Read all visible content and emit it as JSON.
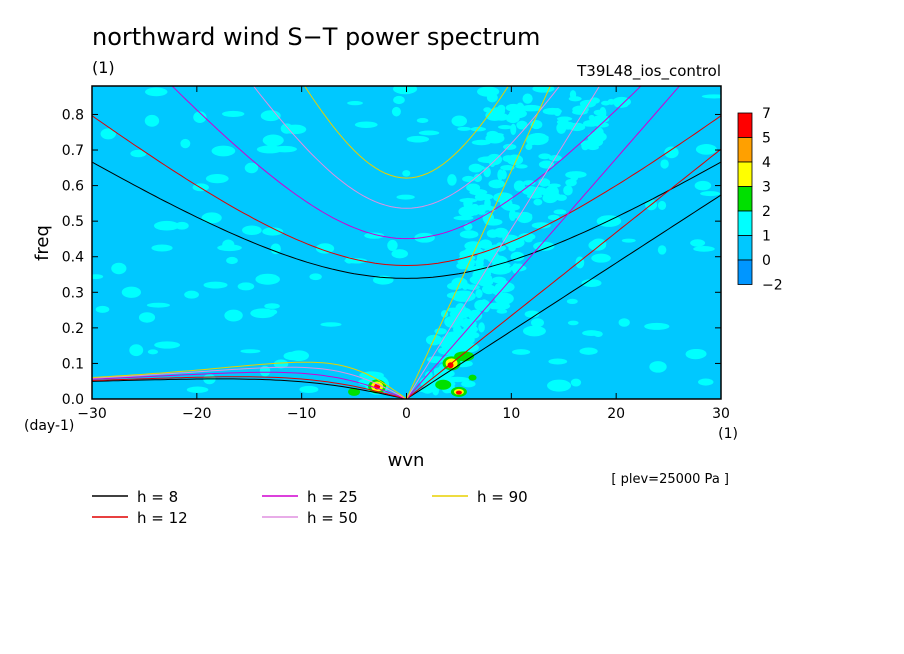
{
  "chart_data": {
    "type": "heatmap",
    "title": "northward wind S−T power spectrum",
    "units_label": "(1)",
    "run_label": "T39L48_ios_control",
    "xlabel": "wvn",
    "xunit": "(1)",
    "ylabel": "freq",
    "yunit": "(day-1)",
    "xlim": [
      -30,
      30
    ],
    "ylim": [
      0,
      0.88
    ],
    "xticks": [
      -30,
      -20,
      -10,
      0,
      10,
      20,
      30
    ],
    "yticks": [
      0.0,
      0.1,
      0.2,
      0.3,
      0.4,
      0.5,
      0.6,
      0.7,
      0.8
    ],
    "level_note": "[ plev=25000 Pa ]",
    "colorbar": {
      "levels": [
        7,
        5,
        4,
        3,
        2,
        1,
        0,
        -2
      ],
      "colors": [
        "#ff0000",
        "#ffa000",
        "#ffff00",
        "#00e000",
        "#00ffff",
        "#00c8ff",
        "#0096ff",
        "#0050ff"
      ]
    },
    "field_colors": {
      "low": "#0096ff",
      "mid": "#00c8ff",
      "high": "#00ffff",
      "peak2": "#00e000",
      "peak3": "#ffff00",
      "peak4": "#ffa000",
      "peak5": "#ff0000"
    },
    "dispersion_curves": [
      {
        "label": "h = 8",
        "h": 8,
        "color": "#000000"
      },
      {
        "label": "h = 12",
        "h": 12,
        "color": "#e00000"
      },
      {
        "label": "h = 25",
        "h": 25,
        "color": "#d000d0"
      },
      {
        "label": "h = 50",
        "h": 50,
        "color": "#e090e0"
      },
      {
        "label": "h = 90",
        "h": 90,
        "color": "#e8d000"
      }
    ],
    "legend_placement": "below-left"
  }
}
